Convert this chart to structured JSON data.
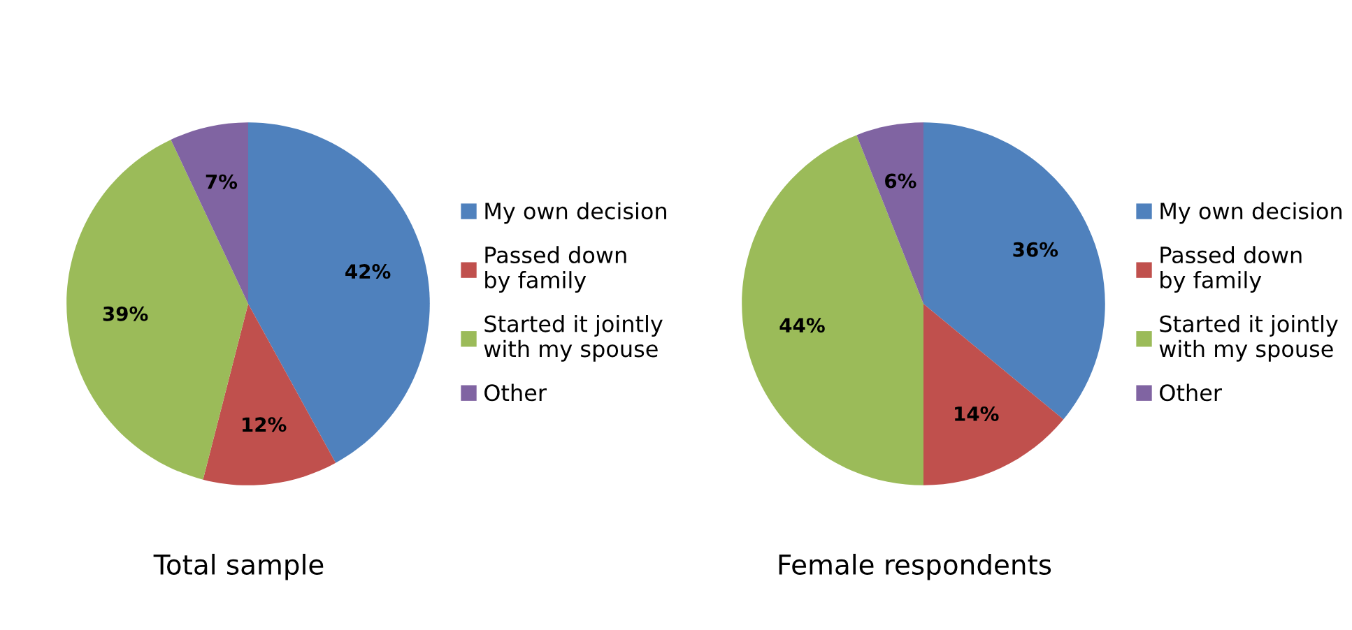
{
  "chart_data": [
    {
      "type": "pie",
      "title": "Total sample",
      "categories": [
        "My own decision",
        "Passed down by family",
        "Started it jointly with my spouse",
        "Other"
      ],
      "values": [
        42,
        12,
        39,
        7
      ],
      "value_labels": [
        "42%",
        "12%",
        "39%",
        "7%"
      ],
      "colors": [
        "#4f81bd",
        "#c0504d",
        "#9bbb59",
        "#8064a2"
      ],
      "legend": "right"
    },
    {
      "type": "pie",
      "title": "Female respondents",
      "categories": [
        "My own decision",
        "Passed down by family",
        "Started it jointly with my spouse",
        "Other"
      ],
      "values": [
        36,
        14,
        44,
        6
      ],
      "value_labels": [
        "36%",
        "14%",
        "44%",
        "6%"
      ],
      "colors": [
        "#4f81bd",
        "#c0504d",
        "#9bbb59",
        "#8064a2"
      ],
      "legend": "right"
    }
  ]
}
